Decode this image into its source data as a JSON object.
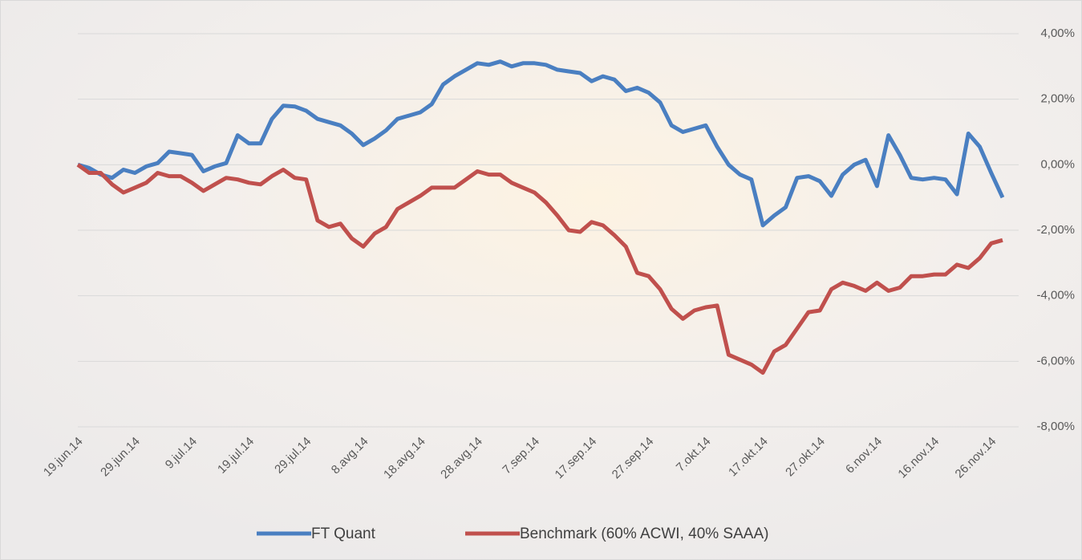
{
  "chart_data": {
    "type": "line",
    "categories": [
      "19.jun.14",
      null,
      null,
      null,
      null,
      "29.jun.14",
      null,
      null,
      null,
      null,
      "9.jul.14",
      null,
      null,
      null,
      null,
      "19.jul.14",
      null,
      null,
      null,
      null,
      "29.jul.14",
      null,
      null,
      null,
      null,
      "8.avg.14",
      null,
      null,
      null,
      null,
      "18.avg.14",
      null,
      null,
      null,
      null,
      "28.avg.14",
      null,
      null,
      null,
      null,
      "7.sep.14",
      null,
      null,
      null,
      null,
      "17.sep.14",
      null,
      null,
      null,
      null,
      "27.sep.14",
      null,
      null,
      null,
      null,
      "7.okt.14",
      null,
      null,
      null,
      null,
      "17.okt.14",
      null,
      null,
      null,
      null,
      "27.okt.14",
      null,
      null,
      null,
      null,
      "6.nov.14",
      null,
      null,
      null,
      null,
      "16.nov.14",
      null,
      null,
      null,
      null,
      "26.nov.14",
      null
    ],
    "series": [
      {
        "name": "FT Quant",
        "color": "#4a7fc1",
        "values": [
          0,
          -0.1,
          -0.3,
          -0.4,
          -0.15,
          -0.25,
          -0.05,
          0.05,
          0.4,
          0.35,
          0.3,
          -0.2,
          -0.05,
          0.05,
          0.9,
          0.65,
          0.65,
          1.4,
          1.8,
          1.78,
          1.65,
          1.4,
          1.3,
          1.2,
          0.95,
          0.6,
          0.8,
          1.05,
          1.4,
          1.5,
          1.6,
          1.85,
          2.45,
          2.7,
          2.9,
          3.1,
          3.05,
          3.15,
          3.0,
          3.1,
          3.1,
          3.05,
          2.9,
          2.85,
          2.8,
          2.55,
          2.7,
          2.6,
          2.25,
          2.35,
          2.2,
          1.9,
          1.2,
          1.0,
          1.1,
          1.2,
          0.55,
          0.0,
          -0.3,
          -0.45,
          -1.85,
          -1.55,
          -1.3,
          -0.4,
          -0.35,
          -0.5,
          -0.95,
          -0.3,
          0.0,
          0.15,
          -0.65,
          0.9,
          0.3,
          -0.4,
          -0.45,
          -0.4,
          -0.45,
          -0.9,
          0.95,
          0.55,
          -0.25,
          -1.0
        ]
      },
      {
        "name": "Benchmark (60% ACWI, 40% SAAA)",
        "color": "#c0504d",
        "values": [
          0,
          -0.25,
          -0.25,
          -0.6,
          -0.85,
          -0.7,
          -0.55,
          -0.25,
          -0.35,
          -0.35,
          -0.55,
          -0.8,
          -0.6,
          -0.4,
          -0.45,
          -0.55,
          -0.6,
          -0.35,
          -0.15,
          -0.4,
          -0.45,
          -1.7,
          -1.9,
          -1.8,
          -2.25,
          -2.5,
          -2.1,
          -1.9,
          -1.35,
          -1.15,
          -0.95,
          -0.7,
          -0.7,
          -0.7,
          -0.45,
          -0.2,
          -0.3,
          -0.3,
          -0.55,
          -0.7,
          -0.85,
          -1.15,
          -1.55,
          -2.0,
          -2.05,
          -1.75,
          -1.85,
          -2.15,
          -2.5,
          -3.3,
          -3.4,
          -3.8,
          -4.4,
          -4.7,
          -4.45,
          -4.35,
          -4.3,
          -5.8,
          -5.95,
          -6.1,
          -6.35,
          -5.7,
          -5.5,
          -5.0,
          -4.5,
          -4.45,
          -3.8,
          -3.6,
          -3.7,
          -3.85,
          -3.6,
          -3.85,
          -3.75,
          -3.4,
          -3.4,
          -3.35,
          -3.35,
          -3.05,
          -3.15,
          -2.85,
          -2.4,
          -2.3
        ]
      }
    ],
    "ylim": [
      -8,
      4
    ],
    "yticks": [
      {
        "value": -8,
        "label": "-8,00%"
      },
      {
        "value": -6,
        "label": "-6,00%"
      },
      {
        "value": -4,
        "label": "-4,00%"
      },
      {
        "value": -2,
        "label": "-2,00%"
      },
      {
        "value": 0,
        "label": "0,00%"
      },
      {
        "value": 2,
        "label": "2,00%"
      },
      {
        "value": 4,
        "label": "4,00%"
      }
    ],
    "grid": true,
    "legend": "bottom"
  }
}
